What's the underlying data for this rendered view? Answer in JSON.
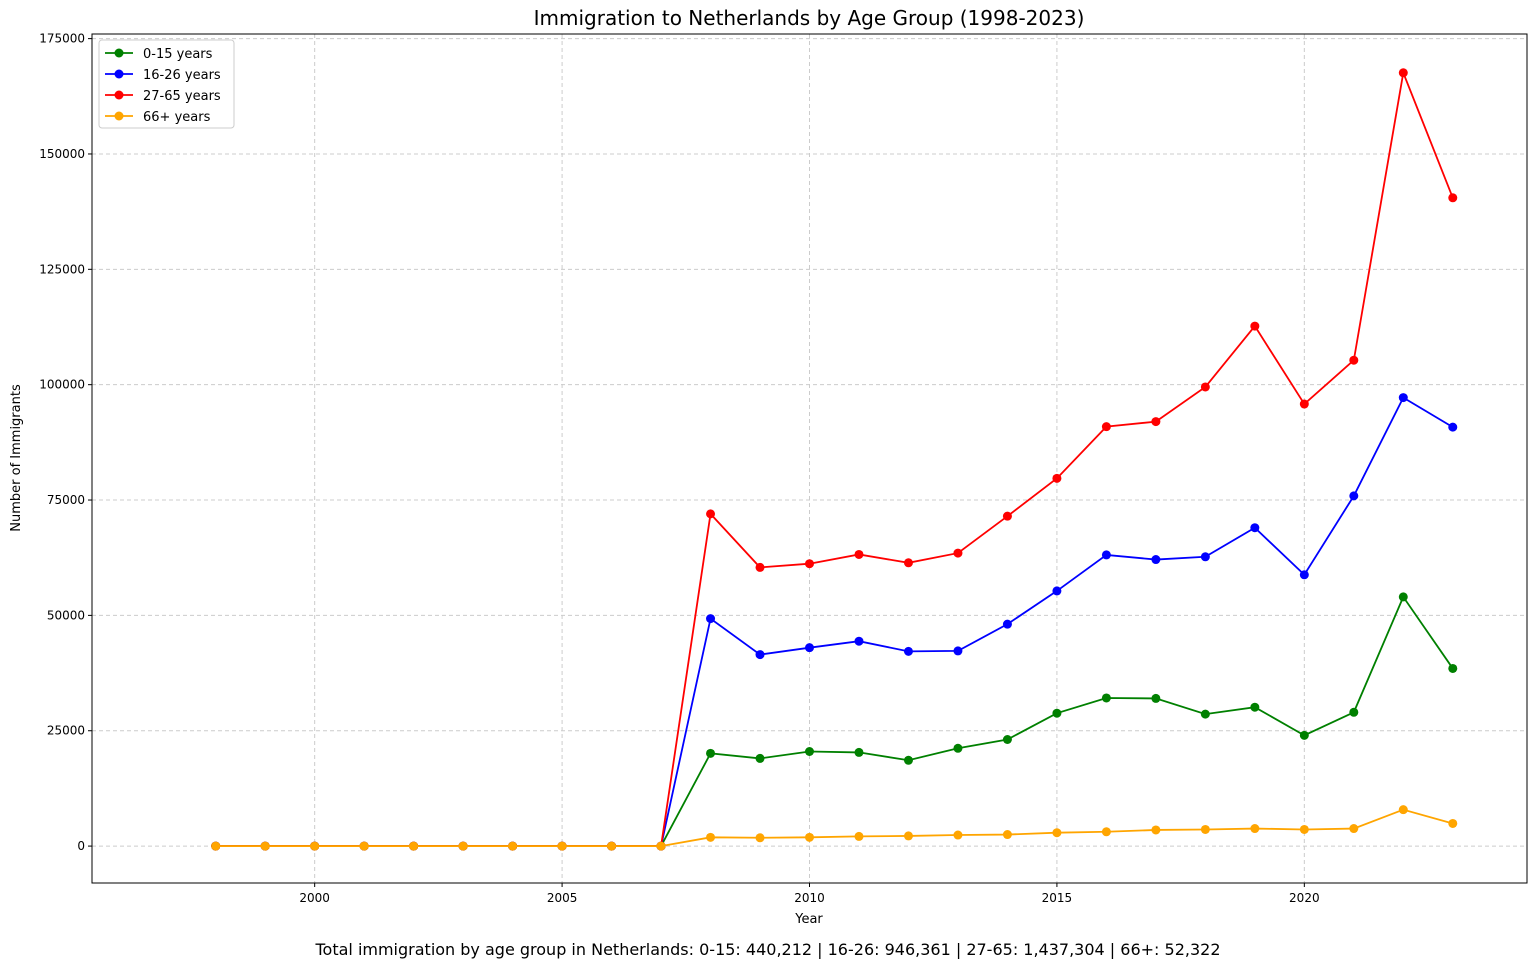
{
  "chart_data": {
    "type": "line",
    "title": "Immigration to Netherlands by Age Group (1998-2023)",
    "xlabel": "Year",
    "ylabel": "Number of Immigrants",
    "xlim": [
      1995.5,
      2024.5
    ],
    "ylim": [
      -8000,
      176000
    ],
    "xticks": [
      2000,
      2005,
      2010,
      2015,
      2020
    ],
    "yticks": [
      0,
      25000,
      50000,
      75000,
      100000,
      125000,
      150000,
      175000
    ],
    "grid": true,
    "legend_position": "top-left",
    "x": [
      1998,
      1999,
      2000,
      2001,
      2002,
      2003,
      2004,
      2005,
      2006,
      2007,
      2008,
      2009,
      2010,
      2011,
      2012,
      2013,
      2014,
      2015,
      2016,
      2017,
      2018,
      2019,
      2020,
      2021,
      2022,
      2023
    ],
    "series": [
      {
        "name": "0-15 years",
        "color": "#008000",
        "values": [
          0,
          0,
          0,
          0,
          0,
          0,
          0,
          0,
          0,
          0,
          20100,
          19000,
          20500,
          20300,
          18600,
          21200,
          23100,
          28800,
          32100,
          32000,
          28600,
          30100,
          24000,
          29000,
          54000,
          38500
        ]
      },
      {
        "name": "16-26 years",
        "color": "#0000ff",
        "values": [
          0,
          0,
          0,
          0,
          0,
          0,
          0,
          0,
          0,
          0,
          49300,
          41500,
          43000,
          44400,
          42200,
          42300,
          48100,
          55300,
          63100,
          62100,
          62700,
          69000,
          58800,
          75900,
          97200,
          90800
        ]
      },
      {
        "name": "27-65 years",
        "color": "#ff0000",
        "values": [
          0,
          0,
          0,
          0,
          0,
          0,
          0,
          0,
          0,
          0,
          72000,
          60400,
          61200,
          63200,
          61400,
          63500,
          71500,
          79700,
          90900,
          92000,
          99500,
          112700,
          95800,
          105300,
          167600,
          140500
        ]
      },
      {
        "name": "66+ years",
        "color": "#ffa500",
        "values": [
          0,
          0,
          0,
          0,
          0,
          0,
          0,
          0,
          0,
          0,
          1900,
          1800,
          1900,
          2100,
          2200,
          2400,
          2500,
          2900,
          3100,
          3500,
          3600,
          3800,
          3600,
          3800,
          7900,
          4900
        ]
      }
    ]
  },
  "caption": "Total immigration by age group in Netherlands: 0-15: 440,212 | 16-26: 946,361 | 27-65: 1,437,304 | 66+: 52,322"
}
